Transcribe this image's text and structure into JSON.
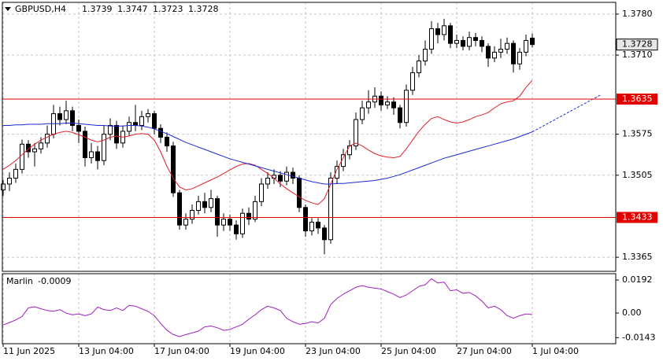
{
  "chart_data": [
    {
      "type": "candlestick",
      "title": "GBPUSD,H4",
      "xlim": [
        -0.5,
        97.25
      ],
      "xticks": [
        {
          "value": 0,
          "label": "11 Jun 2025"
        },
        {
          "value": 12,
          "label": "13 Jun 04:00"
        },
        {
          "value": 24,
          "label": "17 Jun 04:00"
        },
        {
          "value": 36,
          "label": "19 Jun 04:00"
        },
        {
          "value": 48,
          "label": "23 Jun 04:00"
        },
        {
          "value": 60,
          "label": "25 Jun 04:00"
        },
        {
          "value": 72,
          "label": "27 Jun 04:00"
        },
        {
          "value": 84,
          "label": "1 Jul 04:00"
        }
      ],
      "ylim": [
        1.3341,
        1.38
      ],
      "yticks": [
        {
          "value": 1.378,
          "label": "1.3780"
        },
        {
          "value": 1.371,
          "label": "1.3710"
        },
        1.3575,
        1.3505,
        1.3365
      ],
      "grid": true,
      "up_color": "#ffffff",
      "down_color": "#000000",
      "open": [
        1.348,
        1.349,
        1.35,
        1.3515,
        1.3558,
        1.3545,
        1.355,
        1.356,
        1.3575,
        1.361,
        1.36,
        1.3615,
        1.359,
        1.358,
        1.3535,
        1.3545,
        1.353,
        1.3575,
        1.359,
        1.356,
        1.358,
        1.3595,
        1.359,
        1.3605,
        1.361,
        1.3585,
        1.357,
        1.3555,
        1.3475,
        1.342,
        1.343,
        1.3445,
        1.346,
        1.345,
        1.3465,
        1.342,
        1.343,
        1.342,
        1.3405,
        1.344,
        1.343,
        1.346,
        1.349,
        1.35,
        1.3505,
        1.3495,
        1.351,
        1.35,
        1.345,
        1.341,
        1.3425,
        1.3415,
        1.3395,
        1.35,
        1.352,
        1.354,
        1.3555,
        1.36,
        1.362,
        1.363,
        1.364,
        1.3625,
        1.363,
        1.362,
        1.3595,
        1.365,
        1.368,
        1.37,
        1.372,
        1.3755,
        1.3745,
        1.376,
        1.373,
        1.3735,
        1.3725,
        1.374,
        1.3735,
        1.3725,
        1.3705,
        1.3715,
        1.372,
        1.373,
        1.3695,
        1.3715,
        1.3739
      ],
      "high": [
        1.3497,
        1.351,
        1.3525,
        1.3566,
        1.3565,
        1.356,
        1.357,
        1.359,
        1.3625,
        1.3622,
        1.3632,
        1.3622,
        1.36,
        1.3588,
        1.356,
        1.3555,
        1.359,
        1.3602,
        1.3598,
        1.359,
        1.3605,
        1.3625,
        1.3615,
        1.3618,
        1.3615,
        1.3592,
        1.3578,
        1.3562,
        1.348,
        1.344,
        1.3455,
        1.347,
        1.3475,
        1.348,
        1.347,
        1.344,
        1.3438,
        1.3428,
        1.3448,
        1.345,
        1.347,
        1.35,
        1.351,
        1.3515,
        1.3512,
        1.352,
        1.3518,
        1.3505,
        1.3455,
        1.3432,
        1.3432,
        1.342,
        1.351,
        1.353,
        1.355,
        1.3565,
        1.3612,
        1.3632,
        1.365,
        1.3655,
        1.3648,
        1.364,
        1.3638,
        1.3625,
        1.366,
        1.369,
        1.371,
        1.3735,
        1.3768,
        1.3765,
        1.3772,
        1.3765,
        1.3745,
        1.3742,
        1.375,
        1.3748,
        1.3742,
        1.373,
        1.3725,
        1.3738,
        1.374,
        1.3735,
        1.3722,
        1.3745,
        1.3747
      ],
      "low": [
        1.347,
        1.3478,
        1.3492,
        1.3508,
        1.3535,
        1.352,
        1.3542,
        1.3552,
        1.3568,
        1.359,
        1.3592,
        1.358,
        1.356,
        1.352,
        1.3525,
        1.3515,
        1.3522,
        1.3565,
        1.355,
        1.3552,
        1.3572,
        1.358,
        1.3582,
        1.3595,
        1.3575,
        1.356,
        1.3545,
        1.3468,
        1.3412,
        1.3412,
        1.3422,
        1.3438,
        1.344,
        1.3442,
        1.34,
        1.341,
        1.341,
        1.3395,
        1.3398,
        1.342,
        1.3425,
        1.3452,
        1.3482,
        1.349,
        1.3485,
        1.3488,
        1.349,
        1.3442,
        1.34,
        1.3402,
        1.3405,
        1.337,
        1.3388,
        1.349,
        1.3512,
        1.3532,
        1.3548,
        1.3592,
        1.361,
        1.362,
        1.3615,
        1.3618,
        1.3608,
        1.3585,
        1.3588,
        1.3642,
        1.3672,
        1.3692,
        1.3712,
        1.373,
        1.3735,
        1.3722,
        1.3722,
        1.3718,
        1.3718,
        1.3725,
        1.3715,
        1.369,
        1.3698,
        1.3705,
        1.3712,
        1.368,
        1.3685,
        1.3708,
        1.3723
      ],
      "close": [
        1.349,
        1.35,
        1.3515,
        1.3558,
        1.3545,
        1.355,
        1.356,
        1.3575,
        1.361,
        1.36,
        1.3615,
        1.359,
        1.358,
        1.3535,
        1.3545,
        1.353,
        1.3575,
        1.359,
        1.356,
        1.358,
        1.3595,
        1.359,
        1.3605,
        1.361,
        1.3585,
        1.357,
        1.3555,
        1.3475,
        1.342,
        1.343,
        1.3445,
        1.346,
        1.345,
        1.3465,
        1.342,
        1.343,
        1.342,
        1.3405,
        1.344,
        1.343,
        1.346,
        1.349,
        1.35,
        1.3505,
        1.3495,
        1.351,
        1.35,
        1.345,
        1.341,
        1.3425,
        1.3415,
        1.3395,
        1.35,
        1.352,
        1.354,
        1.3555,
        1.36,
        1.362,
        1.363,
        1.364,
        1.3625,
        1.363,
        1.362,
        1.3595,
        1.365,
        1.368,
        1.37,
        1.372,
        1.3755,
        1.3745,
        1.376,
        1.373,
        1.3735,
        1.3725,
        1.374,
        1.3735,
        1.3725,
        1.3705,
        1.3715,
        1.372,
        1.373,
        1.3695,
        1.3715,
        1.3735,
        1.3728
      ],
      "lines": [
        {
          "color": "#e0202a",
          "values": [
            1.3515,
            1.3522,
            1.353,
            1.354,
            1.355,
            1.3558,
            1.3565,
            1.357,
            1.3575,
            1.3578,
            1.358,
            1.3578,
            1.3574,
            1.357,
            1.3565,
            1.3562,
            1.3565,
            1.357,
            1.3572,
            1.357,
            1.3572,
            1.3575,
            1.3576,
            1.3575,
            1.3565,
            1.3545,
            1.352,
            1.35,
            1.3485,
            1.348,
            1.3482,
            1.3487,
            1.3492,
            1.3497,
            1.3502,
            1.3508,
            1.3514,
            1.352,
            1.3524,
            1.3525,
            1.3522,
            1.3515,
            1.3508,
            1.35,
            1.349,
            1.3482,
            1.3475,
            1.3468,
            1.3462,
            1.3458,
            1.3455,
            1.3465,
            1.349,
            1.3515,
            1.3535,
            1.3555,
            1.356,
            1.3555,
            1.3548,
            1.3542,
            1.3538,
            1.3536,
            1.3535,
            1.3537,
            1.355,
            1.3565,
            1.358,
            1.3592,
            1.3602,
            1.3605,
            1.36,
            1.3596,
            1.3594,
            1.3596,
            1.36,
            1.3605,
            1.3608,
            1.3612,
            1.362,
            1.3627,
            1.363,
            1.3632,
            1.364,
            1.3655,
            1.3667
          ]
        },
        {
          "color": "#1a2bd0",
          "values": [
            1.359,
            1.359,
            1.3591,
            1.3591,
            1.3592,
            1.3592,
            1.3592,
            1.3593,
            1.3593,
            1.3593,
            1.3594,
            1.3594,
            1.3593,
            1.3592,
            1.3591,
            1.359,
            1.359,
            1.3589,
            1.3589,
            1.3589,
            1.359,
            1.359,
            1.3589,
            1.3587,
            1.3584,
            1.358,
            1.3576,
            1.3571,
            1.3566,
            1.3561,
            1.3557,
            1.3553,
            1.3549,
            1.3545,
            1.3541,
            1.3537,
            1.3533,
            1.353,
            1.3527,
            1.3524,
            1.3521,
            1.3518,
            1.3515,
            1.3512,
            1.3509,
            1.3506,
            1.3503,
            1.35,
            1.3497,
            1.3494,
            1.3492,
            1.349,
            1.349,
            1.3491,
            1.3491,
            1.3492,
            1.3493,
            1.3494,
            1.3495,
            1.3496,
            1.3498,
            1.35,
            1.3503,
            1.3506,
            1.351,
            1.3514,
            1.3518,
            1.3522,
            1.3526,
            1.353,
            1.3534,
            1.3537,
            1.354,
            1.3543,
            1.3546,
            1.3549,
            1.3552,
            1.3555,
            1.3558,
            1.3561,
            1.3564,
            1.3567,
            1.3571,
            1.3575,
            1.3579
          ]
        }
      ],
      "trendline": {
        "color": "#1a2bd0",
        "x": [
          84,
          95
        ],
        "values": [
          1.3579,
          1.3643
        ]
      },
      "hlines": [
        {
          "value": 1.3635,
          "color": "#e00000"
        },
        {
          "value": 1.3433,
          "color": "#e00000"
        }
      ]
    },
    {
      "type": "line",
      "title": "Marlin",
      "color": "#a020c0",
      "ylim": [
        -0.0178,
        0.0229
      ],
      "yticks": [
        0.0192,
        {
          "value": 0,
          "label": "0.00"
        },
        -0.0143
      ],
      "values": [
        -0.0069,
        -0.0055,
        -0.004,
        -0.002,
        0.003,
        0.0037,
        0.0025,
        0.0015,
        0.001,
        0.002,
        0.0,
        -0.001,
        -0.0005,
        -0.0015,
        -0.0005,
        0.0035,
        0.002,
        0.0015,
        0.003,
        0.0015,
        0.0045,
        0.004,
        0.0025,
        0.001,
        -0.0015,
        -0.006,
        -0.01,
        -0.0125,
        -0.0137,
        -0.0125,
        -0.0115,
        -0.0105,
        -0.008,
        -0.0075,
        -0.0085,
        -0.01,
        -0.0095,
        -0.008,
        -0.0065,
        -0.0035,
        -0.001,
        0.002,
        0.004,
        0.003,
        0.0015,
        -0.003,
        -0.005,
        -0.0065,
        -0.006,
        -0.005,
        -0.0058,
        -0.003,
        0.005,
        0.0085,
        0.011,
        0.013,
        0.015,
        0.016,
        0.015,
        0.0145,
        0.014,
        0.0125,
        0.011,
        0.009,
        0.0105,
        0.013,
        0.0155,
        0.0165,
        0.02,
        0.0175,
        0.018,
        0.013,
        0.0135,
        0.0115,
        0.012,
        0.01,
        0.007,
        0.003,
        0.004,
        0.002,
        -0.0015,
        -0.003,
        -0.0015,
        -0.0005,
        -0.0009
      ]
    }
  ]
}
